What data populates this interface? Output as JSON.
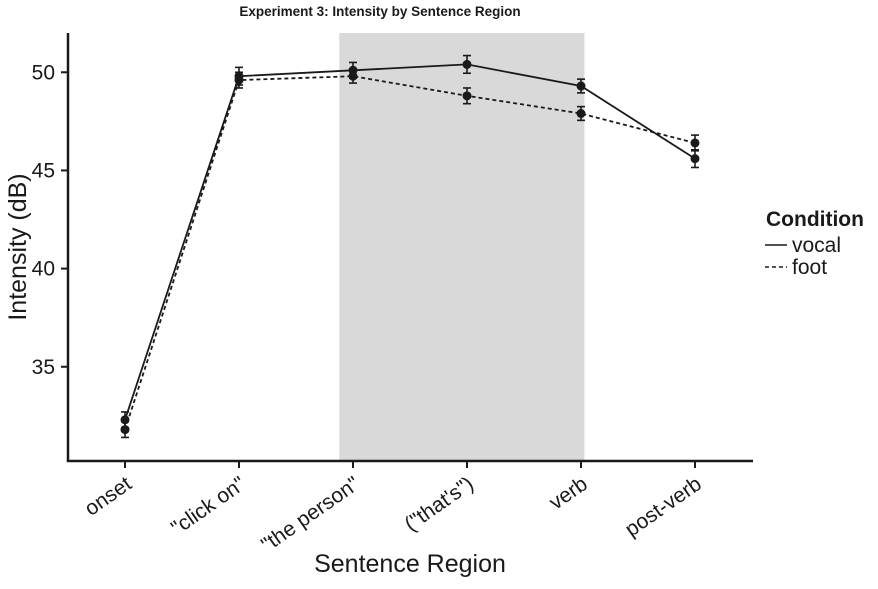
{
  "title": "Experiment 3: Intensity by Sentence Region",
  "chart_data": {
    "type": "line",
    "title": "Experiment 3: Intensity by Sentence Region",
    "xlabel": "Sentence Region",
    "ylabel": "Intensity (dB)",
    "categories": [
      "onset",
      "\"click on\"",
      "\"the person\"",
      "(\"that's\")",
      "verb",
      "post-verb"
    ],
    "series": [
      {
        "name": "vocal",
        "style": "solid",
        "values": [
          32.3,
          49.8,
          50.1,
          50.4,
          49.3,
          45.6
        ],
        "errors": [
          0.4,
          0.45,
          0.4,
          0.45,
          0.35,
          0.45
        ]
      },
      {
        "name": "foot",
        "style": "dashed",
        "values": [
          31.8,
          49.6,
          49.8,
          48.8,
          47.9,
          46.4
        ],
        "errors": [
          0.4,
          0.4,
          0.35,
          0.4,
          0.35,
          0.4
        ]
      }
    ],
    "ylim": [
      30.2,
      52.0
    ],
    "yticks": [
      35,
      40,
      45,
      50
    ],
    "grid": false,
    "legend_title": "Condition",
    "legend_position": "right",
    "shaded_region": {
      "from_category": "\"the person\"",
      "to_category": "verb",
      "start_index": 1.88,
      "end_index": 4.03,
      "color": "#d9d9d9"
    },
    "ink_color": "#1a1a1a",
    "point_radius": 4.5
  }
}
